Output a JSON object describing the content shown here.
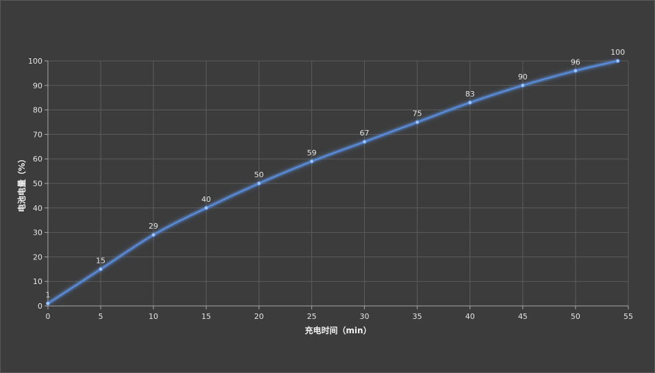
{
  "chart_data": {
    "type": "line",
    "title": "",
    "xlabel": "充电时间（min）",
    "ylabel": "电池电量（%）",
    "x": [
      0,
      5,
      10,
      15,
      20,
      25,
      30,
      35,
      40,
      45,
      50,
      54
    ],
    "series": [
      {
        "values": [
          1,
          15,
          29,
          40,
          50,
          59,
          67,
          75,
          83,
          90,
          96,
          100
        ]
      }
    ],
    "data_labels": [
      "1",
      "15",
      "29",
      "40",
      "50",
      "59",
      "67",
      "75",
      "83",
      "90",
      "96",
      "100"
    ],
    "xlim": [
      0,
      55
    ],
    "ylim": [
      0,
      100
    ],
    "xticks": [
      "0",
      "5",
      "10",
      "15",
      "20",
      "25",
      "30",
      "35",
      "40",
      "45",
      "50",
      "55"
    ],
    "yticks": [
      "0",
      "10",
      "20",
      "30",
      "40",
      "50",
      "60",
      "70",
      "80",
      "90",
      "100"
    ],
    "grid": true,
    "legend": "none",
    "line_color": "#5b8fe0",
    "background_color": "#3c3c3c"
  }
}
